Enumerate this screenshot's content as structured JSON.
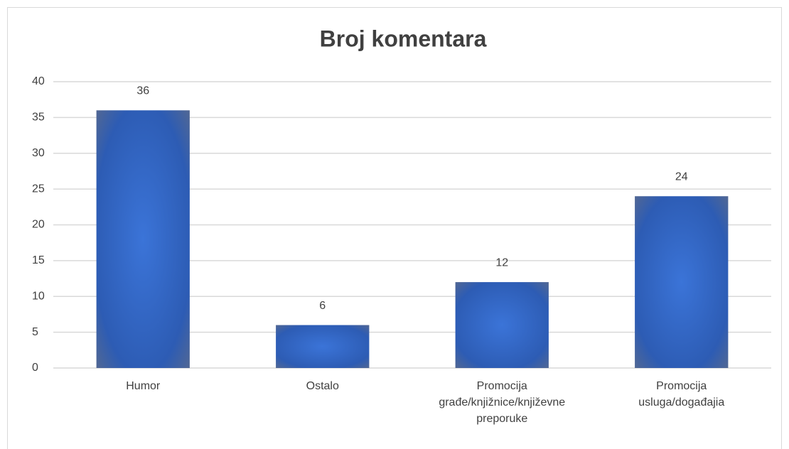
{
  "chart_data": {
    "type": "bar",
    "title": "Broj komentara",
    "categories": [
      "Humor",
      "Ostalo",
      "Promocija\ngrađe/knjižnice/književne\npreporuke",
      "Promocija\nusluga/događajia"
    ],
    "values": [
      36,
      6,
      12,
      24
    ],
    "color": "#2f62c4",
    "ylim": [
      0,
      40
    ],
    "yticks": [
      0,
      5,
      10,
      15,
      20,
      25,
      30,
      35,
      40
    ],
    "grid": true
  }
}
